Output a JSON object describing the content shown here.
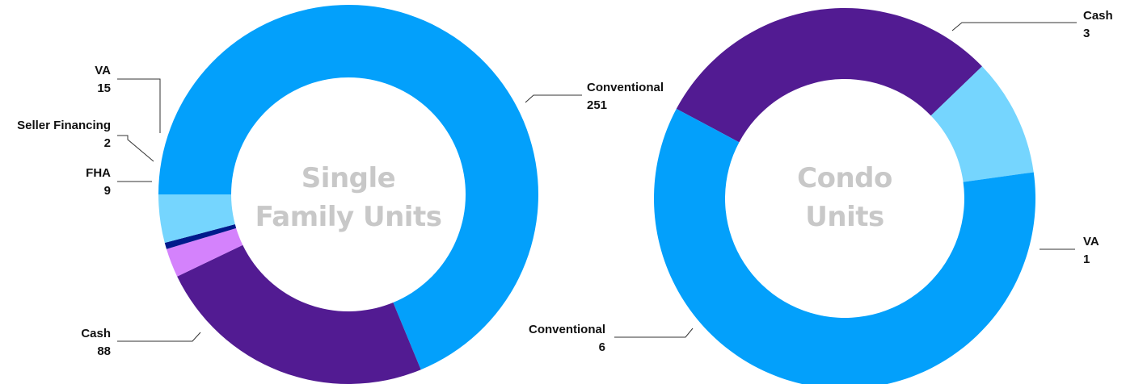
{
  "colors": {
    "Conventional": "#03a0fb",
    "Cash": "#521b92",
    "FHA": "#d482fc",
    "Seller Financing": "#001a8c",
    "VA": "#75d5fe"
  },
  "chart_data": [
    {
      "type": "pie",
      "variant": "donut",
      "center_label": [
        "Single",
        "Family Units"
      ],
      "slices": [
        {
          "label": "Conventional",
          "value": 251
        },
        {
          "label": "Cash",
          "value": 88
        },
        {
          "label": "FHA",
          "value": 9
        },
        {
          "label": "Seller Financing",
          "value": 2
        },
        {
          "label": "VA",
          "value": 15
        }
      ]
    },
    {
      "type": "pie",
      "variant": "donut",
      "center_label": [
        "Condo",
        "Units"
      ],
      "slices": [
        {
          "label": "Cash",
          "value": 3
        },
        {
          "label": "VA",
          "value": 1
        },
        {
          "label": "Conventional",
          "value": 6
        }
      ]
    }
  ]
}
